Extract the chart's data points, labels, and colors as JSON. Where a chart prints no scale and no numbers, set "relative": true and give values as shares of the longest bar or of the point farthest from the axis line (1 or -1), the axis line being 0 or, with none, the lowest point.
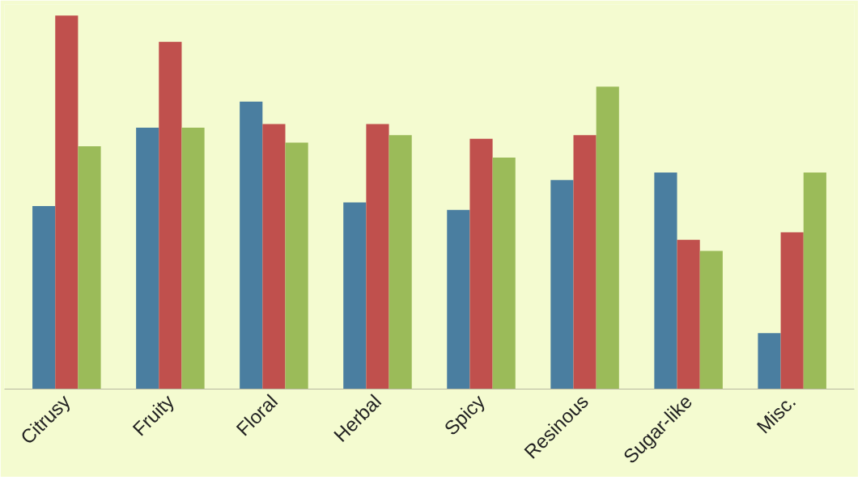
{
  "chart_data": {
    "type": "bar",
    "relative": true,
    "categories": [
      "Citrusy",
      "Fruity",
      "Floral",
      "Herbal",
      "Spicy",
      "Resinous",
      "Sugar-like",
      "Misc."
    ],
    "series": [
      {
        "color": "#4a7ea0",
        "values": [
          0.49,
          0.7,
          0.77,
          0.5,
          0.48,
          0.56,
          0.58,
          0.15
        ]
      },
      {
        "color": "#c0504d",
        "values": [
          1,
          0.93,
          0.71,
          0.71,
          0.67,
          0.68,
          0.4,
          0.42
        ]
      },
      {
        "color": "#9bbb59",
        "values": [
          0.65,
          0.7,
          0.66,
          0.68,
          0.62,
          0.81,
          0.37,
          0.58
        ]
      }
    ]
  }
}
